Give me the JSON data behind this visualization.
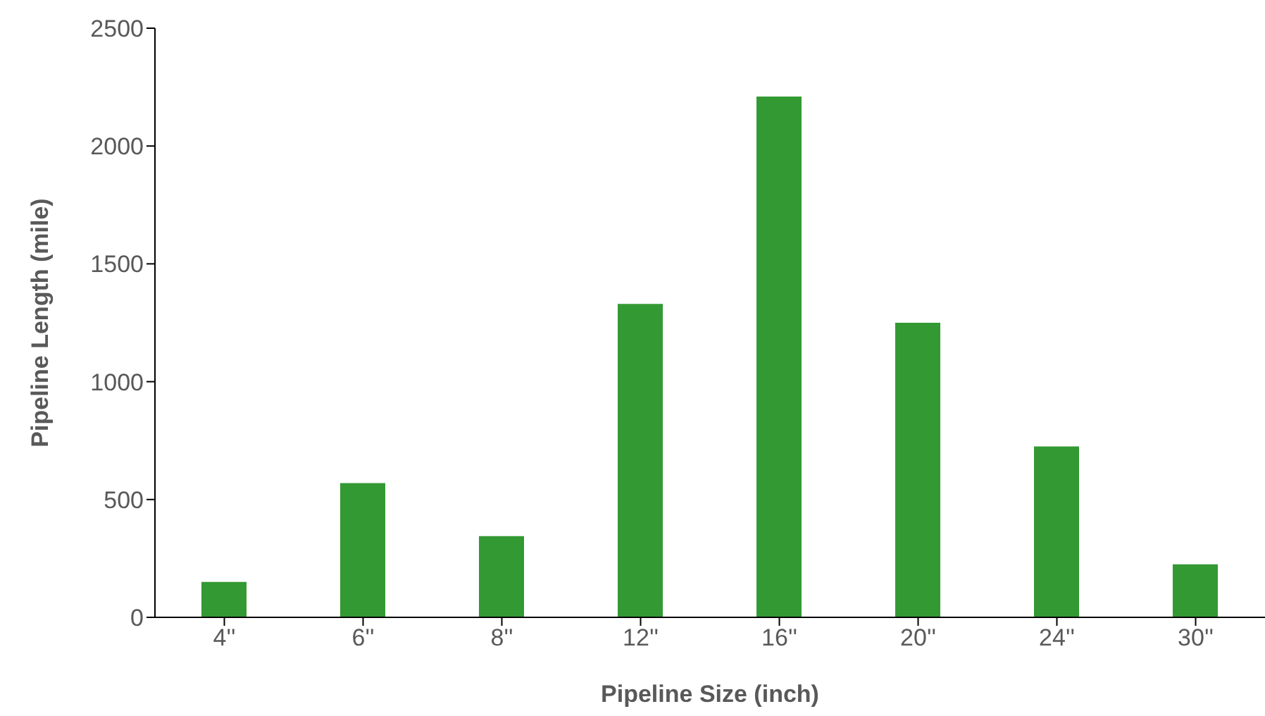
{
  "chart_data": {
    "type": "bar",
    "xlabel": "Pipeline Size (inch)",
    "ylabel": "Pipeline Length (mile)",
    "categories": [
      "4''",
      "6''",
      "8''",
      "12''",
      "16''",
      "20''",
      "24''",
      "30''"
    ],
    "values": [
      150,
      570,
      345,
      1330,
      2210,
      1250,
      725,
      225
    ],
    "color": "#339933",
    "ylim": [
      0,
      2500
    ],
    "yticks": [
      0,
      500,
      1000,
      1500,
      2000,
      2500
    ],
    "grid": false
  }
}
